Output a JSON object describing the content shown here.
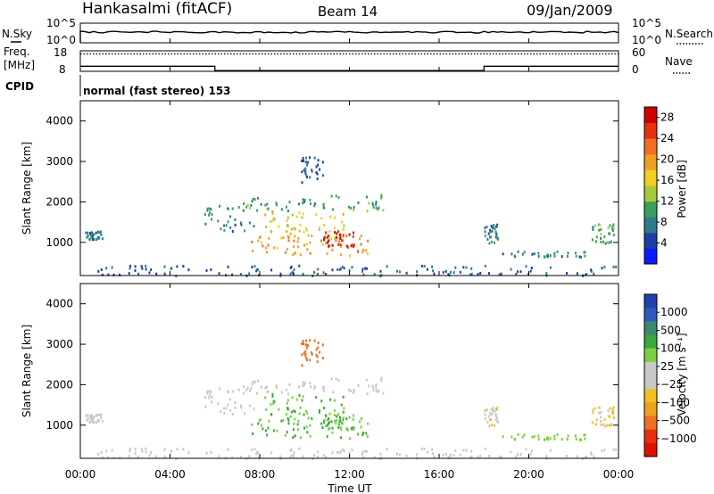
{
  "header": {
    "station": "Hankasalmi (fitACF)",
    "beam": "Beam 14",
    "date": "09/Jan/2009",
    "mode": "normal (fast stereo) 153"
  },
  "left_labels": {
    "nsky": "N.Sky",
    "freq_line1": "Freq.",
    "freq_line2": "[MHz]",
    "cpid": "CPID"
  },
  "right_labels": {
    "nsearch": "N.Search",
    "nave": "Nave"
  },
  "nsky_axis": {
    "top": "10^5",
    "bottom": "10^0"
  },
  "nsearch_axis": {
    "top": "10^5",
    "bottom": "10^0"
  },
  "freq_axis": {
    "top": "18",
    "bottom": "8"
  },
  "nave_axis": {
    "top": "60",
    "bottom": "0"
  },
  "x_axis": {
    "label": "Time UT",
    "ticks": [
      "00:00",
      "04:00",
      "08:00",
      "12:00",
      "16:00",
      "20:00",
      "00:00"
    ]
  },
  "power_panel": {
    "ylabel": "Slant Range [km]",
    "yticks": [
      "1000",
      "2000",
      "3000",
      "4000"
    ],
    "colorbar_label": "Power [dB]",
    "colorbar_ticks": [
      "4",
      "8",
      "12",
      "16",
      "20",
      "24",
      "28"
    ],
    "colorbar_colors": [
      "#0b1bff",
      "#1f3ca8",
      "#2f7a8a",
      "#3aa05a",
      "#a8c93a",
      "#f0d020",
      "#f0a020",
      "#f07020",
      "#e83010",
      "#d00000"
    ]
  },
  "velocity_panel": {
    "ylabel": "Slant Range [km]",
    "yticks": [
      "1000",
      "2000",
      "3000",
      "4000"
    ],
    "colorbar_label": "Velocity [m s⁻¹]",
    "colorbar_ticks": [
      "1000",
      "500",
      "100",
      "25",
      "−25",
      "−100",
      "−500",
      "−1000"
    ],
    "colorbar_colors": [
      "#2040b0",
      "#2d58c0",
      "#3a8a70",
      "#3aa83a",
      "#7ad040",
      "#c8c8c8",
      "#c8c8c8",
      "#f0c020",
      "#f0a020",
      "#f07020",
      "#e83010",
      "#e01000"
    ]
  },
  "chart_data": {
    "type": "heatmap",
    "title": "Hankasalmi (fitACF) Beam 14 09/Jan/2009",
    "xlabel": "Time UT",
    "ylabel": "Slant Range [km]",
    "x_range_hours": [
      0,
      24
    ],
    "y_range_km": [
      180,
      4500
    ],
    "grid": false,
    "frequency_mhz": [
      {
        "t_start": 0,
        "t_end": 6,
        "value": 10.5
      },
      {
        "t_start": 6,
        "t_end": 18,
        "value": 8.4
      },
      {
        "t_start": 18,
        "t_end": 24,
        "value": 10.5
      }
    ],
    "scatter_regions": [
      {
        "t_start": 0.2,
        "t_end": 1.0,
        "range_start": 1100,
        "range_end": 1300,
        "power_db": 8,
        "velocity": 20
      },
      {
        "t_start": 5.5,
        "t_end": 7.8,
        "range_start": 1300,
        "range_end": 1950,
        "power_db": 8,
        "velocity": 20
      },
      {
        "t_start": 7.0,
        "t_end": 13.5,
        "range_start": 1800,
        "range_end": 2200,
        "power_db": 10,
        "velocity": 20
      },
      {
        "t_start": 8.2,
        "t_end": 11.8,
        "range_start": 1100,
        "range_end": 1800,
        "power_db": 16,
        "velocity": 100
      },
      {
        "t_start": 7.6,
        "t_end": 12.8,
        "range_start": 700,
        "range_end": 1200,
        "power_db": 20,
        "velocity": 100
      },
      {
        "t_start": 10.8,
        "t_end": 12.2,
        "range_start": 900,
        "range_end": 1300,
        "power_db": 28,
        "velocity": 100
      },
      {
        "t_start": 9.8,
        "t_end": 10.8,
        "range_start": 2500,
        "range_end": 3200,
        "power_db": 6,
        "velocity": -150
      },
      {
        "t_start": 18.8,
        "t_end": 22.5,
        "range_start": 650,
        "range_end": 800,
        "power_db": 8,
        "velocity": 80
      },
      {
        "t_start": 18.0,
        "t_end": 18.6,
        "range_start": 1000,
        "range_end": 1500,
        "power_db": 8,
        "velocity": -20
      },
      {
        "t_start": 22.8,
        "t_end": 23.8,
        "range_start": 1000,
        "range_end": 1500,
        "power_db": 10,
        "velocity": -30
      },
      {
        "t_start": 0.0,
        "t_end": 24.0,
        "range_start": 200,
        "range_end": 450,
        "power_db": 6,
        "velocity": 30
      }
    ]
  }
}
